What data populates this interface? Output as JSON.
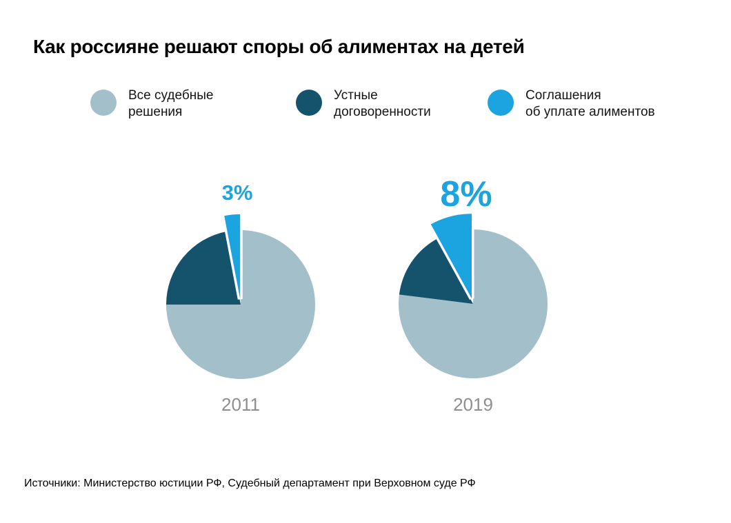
{
  "page": {
    "title": "Как россияне решают споры об алиментах на детей",
    "source": "Источники: Министерство юстиции РФ, Судебный департамент при Верховном суде РФ"
  },
  "colors": {
    "court_decisions": "#a3c0ca",
    "oral_agreements": "#14536b",
    "alimony_agreements": "#1ba4e0",
    "year_label": "#8e8e8e",
    "title_text": "#000000",
    "background": "#ffffff"
  },
  "legend": [
    {
      "line1": "Все судебные",
      "line2": "решения",
      "color": "#a3c0ca"
    },
    {
      "line1": "Устные",
      "line2": "договоренности",
      "color": "#14536b"
    },
    {
      "line1": "Соглашения",
      "line2": "об уплате алиментов",
      "color": "#1ba4e0"
    }
  ],
  "chart_data": {
    "type": "pie",
    "title": "Как россияне решают споры об алиментах на детей",
    "legend_entries": [
      "Все судебные решения",
      "Устные договоренности",
      "Соглашения об уплате алиментов"
    ],
    "slice_colors": [
      "#a3c0ca",
      "#14536b",
      "#1ba4e0"
    ],
    "start_angle_deg_from_12_clockwise": 0,
    "exploded_label": "Соглашения об уплате алиментов",
    "pies": [
      {
        "year": "2011",
        "callout": "3%",
        "slices": [
          {
            "label": "Все судебные решения",
            "value": 75
          },
          {
            "label": "Устные договоренности",
            "value": 22
          },
          {
            "label": "Соглашения об уплате алиментов",
            "value": 3
          }
        ]
      },
      {
        "year": "2019",
        "callout": "8%",
        "slices": [
          {
            "label": "Все судебные решения",
            "value": 77
          },
          {
            "label": "Устные договоренности",
            "value": 15
          },
          {
            "label": "Соглашения об уплате алиментов",
            "value": 8
          }
        ]
      }
    ]
  }
}
